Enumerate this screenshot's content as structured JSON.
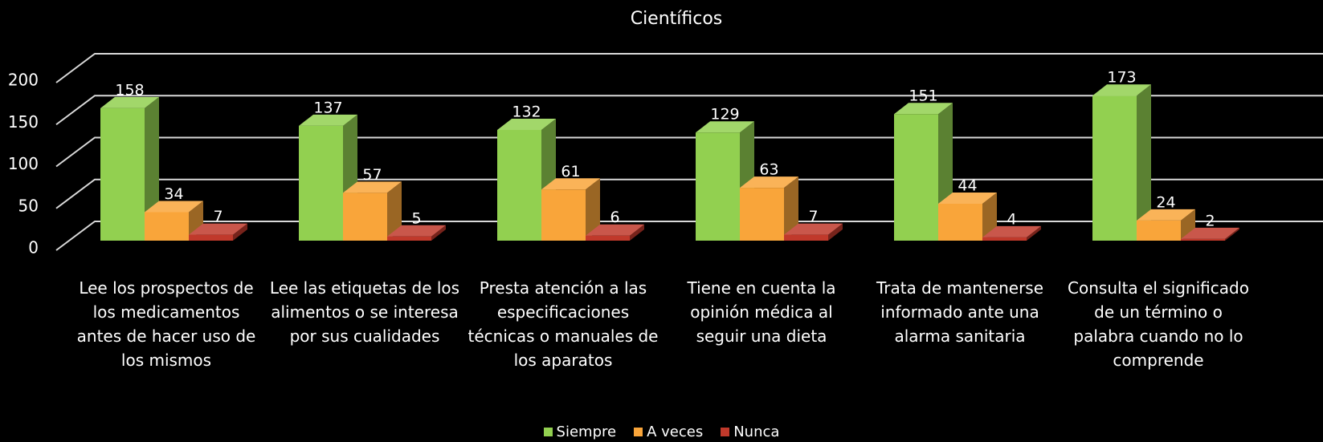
{
  "chart_data": {
    "type": "bar3d",
    "title": "Científicos",
    "categories": [
      "Lee los prospectos de los medicamentos antes de hacer uso de los mismos",
      "Lee las etiquetas de los alimentos o se interesa por sus cualidades",
      "Presta atención a las especificaciones técnicas o manuales de los aparatos",
      "Tiene en cuenta la opinión médica al seguir una dieta",
      "Trata de mantenerse informado ante una alarma sanitaria",
      "Consulta el significado de un término o palabra cuando no lo comprende"
    ],
    "series": [
      {
        "name": "Siempre",
        "color": "#92d050",
        "values": [
          158,
          137,
          132,
          129,
          151,
          173
        ]
      },
      {
        "name": "A veces",
        "color": "#f9a53a",
        "values": [
          34,
          57,
          61,
          63,
          44,
          24
        ]
      },
      {
        "name": "Nunca",
        "color": "#c0392b",
        "values": [
          7,
          5,
          6,
          7,
          4,
          2
        ]
      }
    ],
    "ylim": [
      0,
      200
    ],
    "yticks": [
      0,
      50,
      100,
      150,
      200
    ],
    "grid": true,
    "legend": "bottom"
  }
}
